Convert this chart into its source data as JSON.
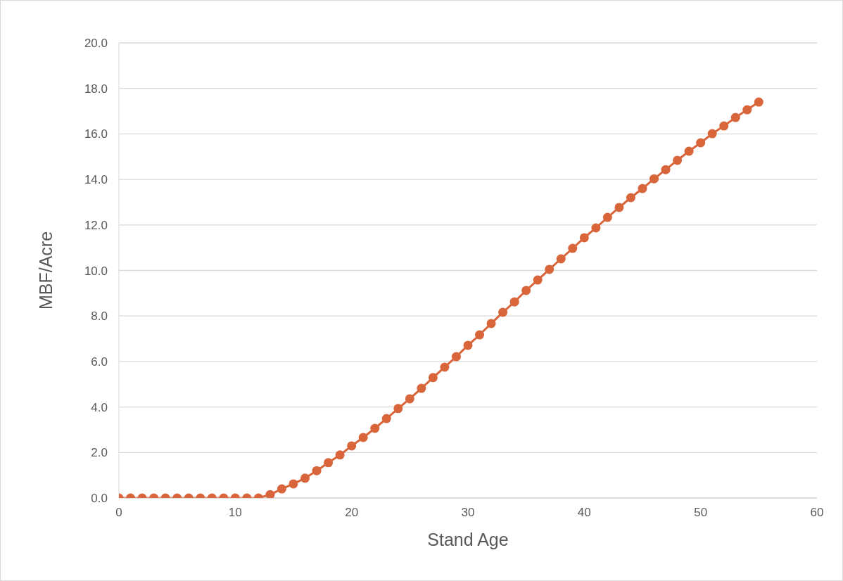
{
  "chart_data": {
    "type": "line",
    "xlabel": "Stand Age",
    "ylabel": "MBF/Acre",
    "x": [
      0,
      1,
      2,
      3,
      4,
      5,
      6,
      7,
      8,
      9,
      10,
      11,
      12,
      13,
      14,
      15,
      16,
      17,
      18,
      19,
      20,
      21,
      22,
      23,
      24,
      25,
      26,
      27,
      28,
      29,
      30,
      31,
      32,
      33,
      34,
      35,
      36,
      37,
      38,
      39,
      40,
      41,
      42,
      43,
      44,
      45,
      46,
      47,
      48,
      49,
      50,
      51,
      52,
      53,
      54,
      55
    ],
    "series": [
      {
        "color": "#d9653b",
        "values": [
          0,
          0,
          0,
          0,
          0,
          0,
          0,
          0,
          0,
          0,
          0,
          0,
          0,
          0.15,
          0.4,
          0.62,
          0.87,
          1.2,
          1.55,
          1.89,
          2.29,
          2.66,
          3.06,
          3.49,
          3.93,
          4.36,
          4.82,
          5.29,
          5.75,
          6.21,
          6.71,
          7.17,
          7.67,
          8.16,
          8.62,
          9.12,
          9.58,
          10.05,
          10.51,
          10.97,
          11.44,
          11.87,
          12.33,
          12.77,
          13.2,
          13.6,
          14.03,
          14.43,
          14.84,
          15.24,
          15.61,
          16.01,
          16.35,
          16.72,
          17.06,
          17.4
        ]
      }
    ],
    "xlim": [
      0,
      60
    ],
    "xticks": [
      0,
      10,
      20,
      30,
      40,
      50,
      60
    ],
    "ylim": [
      0,
      20
    ],
    "yticks": [
      {
        "value": 0,
        "label": "0.0"
      },
      {
        "value": 2,
        "label": "2.0"
      },
      {
        "value": 4,
        "label": "4.0"
      },
      {
        "value": 6,
        "label": "6.0"
      },
      {
        "value": 8,
        "label": "8.0"
      },
      {
        "value": 10,
        "label": "10.0"
      },
      {
        "value": 12,
        "label": "12.0"
      },
      {
        "value": 14,
        "label": "14.0"
      },
      {
        "value": 16,
        "label": "16.0"
      },
      {
        "value": 18,
        "label": "18.0"
      },
      {
        "value": 20,
        "label": "20.0"
      }
    ],
    "grid": "y",
    "marker": "circle",
    "line_style": "solid"
  }
}
